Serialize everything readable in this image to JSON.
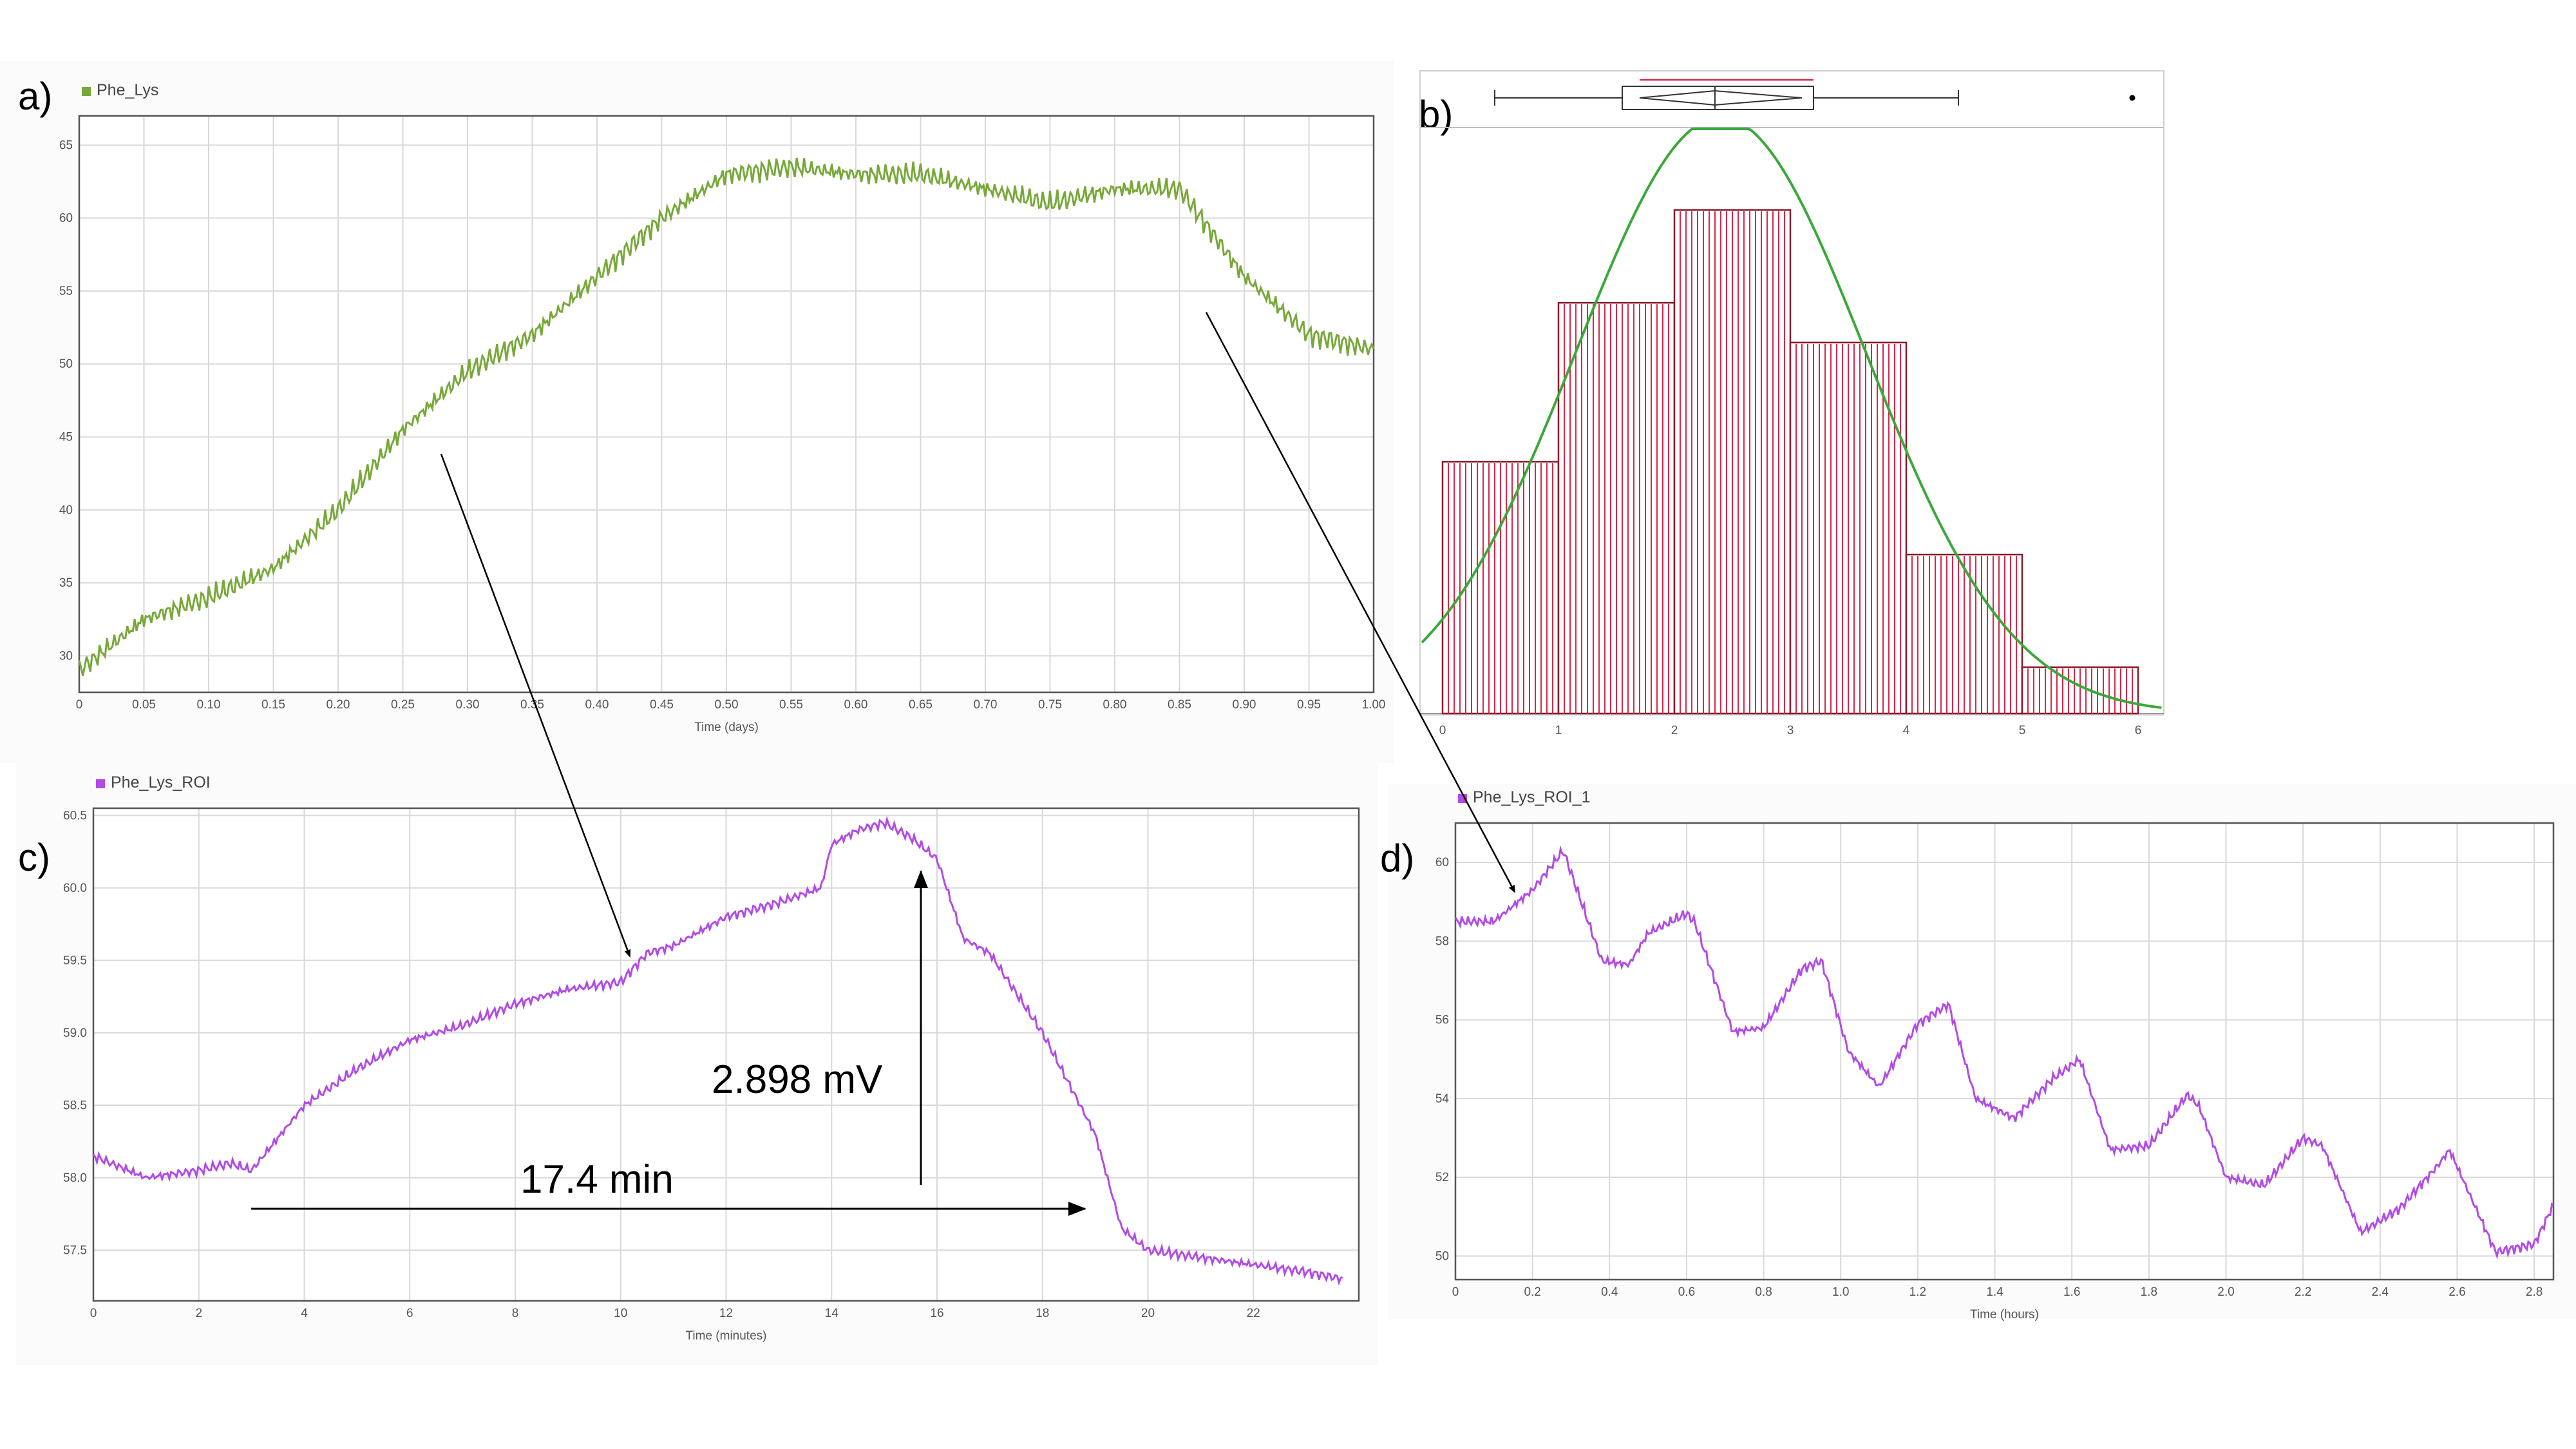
{
  "panel_labels": {
    "a": "a)",
    "b": "b)",
    "c": "c)",
    "d": "d)"
  },
  "annotations": {
    "amplitude": "2.898 mV",
    "duration": "17.4 min"
  },
  "colors": {
    "green_series": "#78a83a",
    "purple_series": "#b24be6",
    "histogram": "#d6284a",
    "fit_curve": "#3aa83a",
    "boxplot": "#333333"
  },
  "chart_data": [
    {
      "id": "a",
      "type": "line",
      "series": [
        {
          "name": "Phe_Lys",
          "color": "#78a83a",
          "x": [
            0,
            0.05,
            0.1,
            0.15,
            0.2,
            0.25,
            0.3,
            0.35,
            0.4,
            0.45,
            0.5,
            0.55,
            0.6,
            0.65,
            0.7,
            0.75,
            0.8,
            0.85,
            0.9,
            0.95,
            1.0
          ],
          "y": [
            29,
            32.5,
            34,
            36,
            40,
            45.5,
            49.5,
            52,
            56,
            60,
            63,
            63.5,
            63,
            63,
            62,
            61,
            62,
            62,
            56,
            52,
            51
          ]
        }
      ],
      "xlabel": "Time (days)",
      "xticks": [
        "0",
        "0.05",
        "0.10",
        "0.15",
        "0.20",
        "0.25",
        "0.30",
        "0.35",
        "0.40",
        "0.45",
        "0.50",
        "0.55",
        "0.60",
        "0.65",
        "0.70",
        "0.75",
        "0.80",
        "0.85",
        "0.90",
        "0.95",
        "1.00"
      ],
      "yticks": [
        "30",
        "35",
        "40",
        "45",
        "50",
        "55",
        "60",
        "65"
      ],
      "xlim": [
        0,
        1.0
      ],
      "ylim": [
        27.5,
        67
      ],
      "grid": true,
      "legend": "top-left"
    },
    {
      "id": "b",
      "type": "bar",
      "bins": [
        [
          0,
          1
        ],
        [
          1,
          2
        ],
        [
          2,
          3
        ],
        [
          3,
          4
        ],
        [
          4,
          5
        ],
        [
          5,
          6
        ]
      ],
      "values": [
        19,
        31,
        38,
        28,
        12,
        3.5
      ],
      "fit_curve": "normal",
      "fit_mean": 2.4,
      "fit_sd": 1.25,
      "fit_peak": 45,
      "boxplot": {
        "min": 0.45,
        "q1": 1.55,
        "median": 2.35,
        "q3": 3.2,
        "max": 4.45,
        "outlier": 5.95,
        "mean": 2.35,
        "mean_ci": [
          1.7,
          3.1
        ]
      },
      "xticks": [
        "0",
        "1",
        "2",
        "3",
        "4",
        "5",
        "6"
      ],
      "xlim": [
        0,
        6
      ],
      "ylim": [
        0,
        40
      ]
    },
    {
      "id": "c",
      "type": "line",
      "series": [
        {
          "name": "Phe_Lys_ROI",
          "color": "#b24be6",
          "x": [
            0,
            1,
            2,
            2.6,
            3,
            4,
            5,
            6,
            7,
            8,
            9,
            10,
            10.5,
            11,
            12,
            13,
            13.8,
            14,
            14.5,
            15,
            15.5,
            16,
            16.5,
            17,
            18,
            19,
            19.5,
            20,
            21,
            22,
            23,
            23.7
          ],
          "y": [
            58.15,
            58.0,
            58.05,
            58.1,
            58.05,
            58.5,
            58.75,
            58.95,
            59.05,
            59.2,
            59.3,
            59.35,
            59.55,
            59.6,
            59.8,
            59.9,
            60.0,
            60.3,
            60.4,
            60.45,
            60.35,
            60.2,
            59.65,
            59.55,
            59.0,
            58.3,
            57.65,
            57.5,
            57.45,
            57.4,
            57.35,
            57.3
          ]
        }
      ],
      "xlabel": "Time (minutes)",
      "xticks": [
        "0",
        "2",
        "4",
        "6",
        "8",
        "10",
        "12",
        "14",
        "16",
        "18",
        "20",
        "22"
      ],
      "yticks": [
        "57.5",
        "58.0",
        "58.5",
        "59.0",
        "59.5",
        "60.0",
        "60.5"
      ],
      "xlim": [
        0,
        24
      ],
      "ylim": [
        57.15,
        60.55
      ],
      "grid": true,
      "legend": "top-left"
    },
    {
      "id": "d",
      "type": "line",
      "series": [
        {
          "name": "Phe_Lys_ROI_1",
          "color": "#b24be6",
          "x": [
            0,
            0.1,
            0.2,
            0.28,
            0.38,
            0.45,
            0.5,
            0.6,
            0.62,
            0.72,
            0.8,
            0.9,
            0.95,
            1.02,
            1.1,
            1.2,
            1.28,
            1.35,
            1.45,
            1.55,
            1.62,
            1.7,
            1.8,
            1.9,
            1.93,
            2.0,
            2.1,
            2.2,
            2.25,
            2.35,
            2.45,
            2.55,
            2.58,
            2.7,
            2.8,
            2.85
          ],
          "y": [
            58.5,
            58.5,
            59.3,
            60.3,
            57.5,
            57.4,
            58.2,
            58.7,
            58.5,
            55.7,
            55.8,
            57.3,
            57.5,
            55.2,
            54.3,
            55.9,
            56.4,
            54.0,
            53.5,
            54.5,
            55.0,
            52.7,
            52.8,
            54.1,
            53.8,
            52.0,
            51.8,
            53.0,
            52.8,
            50.6,
            51.2,
            52.3,
            52.7,
            50.1,
            50.3,
            51.3
          ]
        }
      ],
      "xlabel": "Time (hours)",
      "xticks": [
        "0",
        "0.2",
        "0.4",
        "0.6",
        "0.8",
        "1.0",
        "1.2",
        "1.4",
        "1.6",
        "1.8",
        "2.0",
        "2.2",
        "2.4",
        "2.6",
        "2.8"
      ],
      "yticks": [
        "50",
        "52",
        "54",
        "56",
        "58",
        "60"
      ],
      "xlim": [
        0,
        2.85
      ],
      "ylim": [
        49.4,
        61
      ],
      "grid": true,
      "legend": "top-left"
    }
  ]
}
